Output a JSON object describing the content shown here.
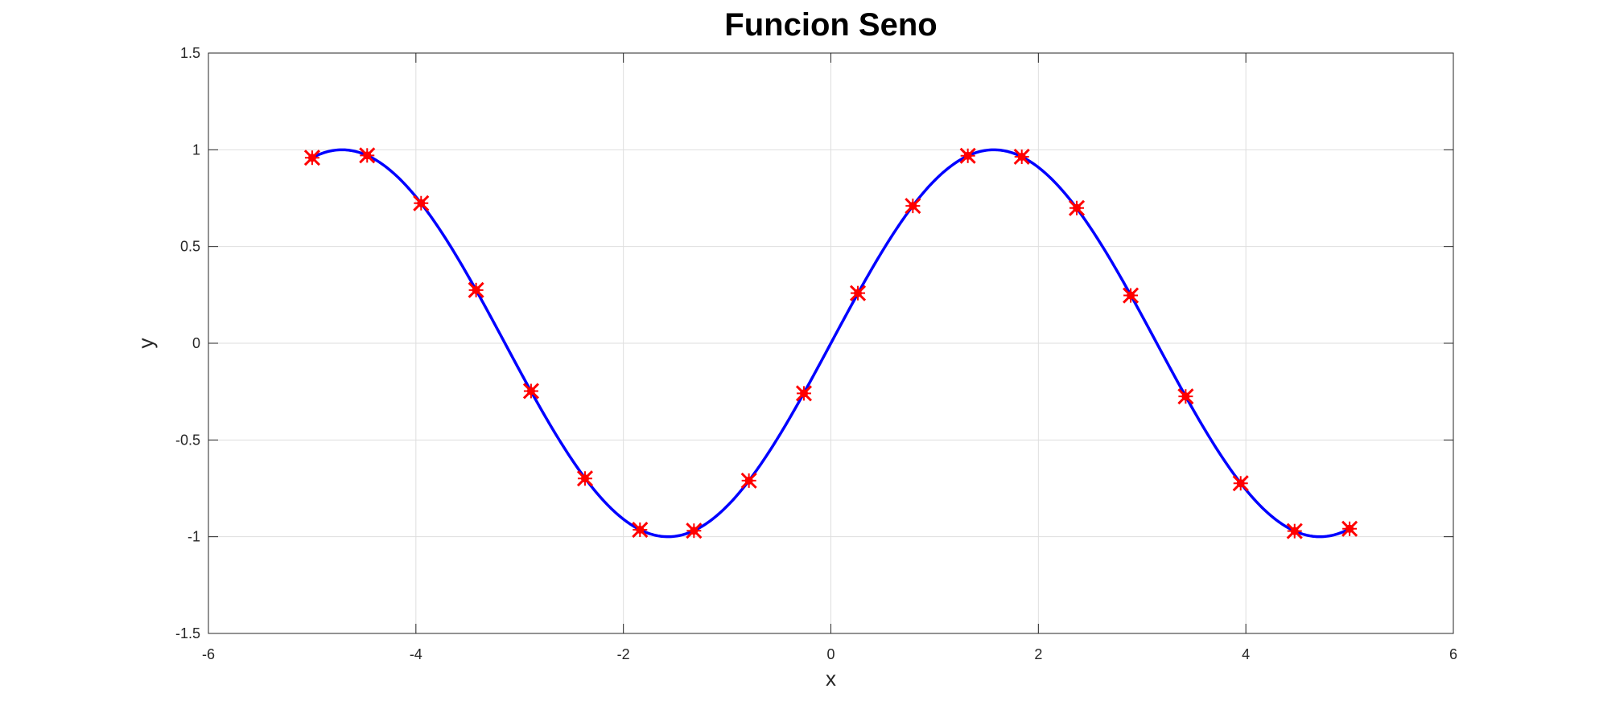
{
  "chart_data": {
    "type": "line",
    "title": "Funcion Seno",
    "xlabel": "x",
    "ylabel": "y",
    "xlim": [
      -6,
      6
    ],
    "ylim": [
      -1.5,
      1.5
    ],
    "xticks": [
      -6,
      -4,
      -2,
      0,
      2,
      4,
      6
    ],
    "yticks": [
      -1.5,
      -1,
      -0.5,
      0,
      0.5,
      1,
      1.5
    ],
    "xtick_labels": [
      "-6",
      "-4",
      "-2",
      "0",
      "2",
      "4",
      "6"
    ],
    "ytick_labels": [
      "-1.5",
      "-1",
      "-0.5",
      "0",
      "0.5",
      "1",
      "1.5"
    ],
    "grid": true,
    "series": [
      {
        "style": "line",
        "color": "#0000ff",
        "x_range": [
          -5,
          5
        ],
        "function": "sin(x)"
      },
      {
        "style": "markers",
        "color": "#ff0000",
        "x": [
          -5.0,
          -4.47,
          -3.95,
          -3.42,
          -2.89,
          -2.37,
          -1.84,
          -1.32,
          -0.79,
          -0.26,
          0.26,
          0.79,
          1.32,
          1.84,
          2.37,
          2.89,
          3.42,
          3.95,
          4.47,
          5.0
        ],
        "y": [
          0.959,
          0.971,
          0.724,
          0.275,
          -0.247,
          -0.699,
          -0.964,
          -0.969,
          -0.71,
          -0.259,
          0.259,
          0.71,
          0.969,
          0.964,
          0.699,
          0.247,
          -0.275,
          -0.724,
          -0.971,
          -0.959
        ]
      }
    ]
  }
}
